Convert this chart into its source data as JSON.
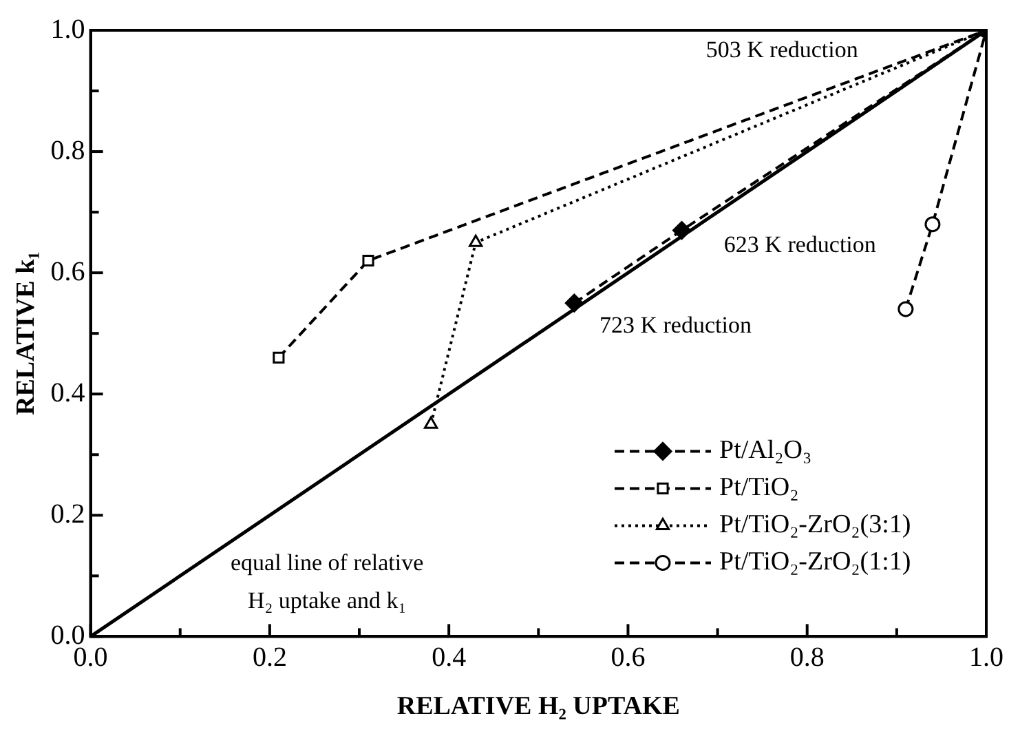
{
  "chart_data": {
    "type": "line",
    "xlabel": "RELATIVE H₂ UPTAKE",
    "ylabel": "RELATIVE k₁",
    "xlim": [
      0,
      1
    ],
    "ylim": [
      0,
      1
    ],
    "xticks": [
      {
        "value": 0,
        "label": "0.0"
      },
      {
        "value": 0.1,
        "label": null
      },
      {
        "value": 0.2,
        "label": "0.2"
      },
      {
        "value": 0.3,
        "label": null
      },
      {
        "value": 0.4,
        "label": "0.4"
      },
      {
        "value": 0.5,
        "label": null
      },
      {
        "value": 0.6,
        "label": "0.6"
      },
      {
        "value": 0.7,
        "label": null
      },
      {
        "value": 0.8,
        "label": "0.8"
      },
      {
        "value": 0.9,
        "label": null
      },
      {
        "value": 1,
        "label": "1.0"
      }
    ],
    "yticks": [
      {
        "value": 0,
        "label": "0.0"
      },
      {
        "value": 0.1,
        "label": null
      },
      {
        "value": 0.2,
        "label": "0.2"
      },
      {
        "value": 0.3,
        "label": null
      },
      {
        "value": 0.4,
        "label": "0.4"
      },
      {
        "value": 0.5,
        "label": null
      },
      {
        "value": 0.6,
        "label": "0.6"
      },
      {
        "value": 0.7,
        "label": null
      },
      {
        "value": 0.8,
        "label": "0.8"
      },
      {
        "value": 0.9,
        "label": null
      },
      {
        "value": 1,
        "label": "1.0"
      }
    ],
    "legend": "bottom right",
    "grid": false,
    "series": [
      {
        "name": "Pt/Al₂O₃",
        "color": "#000000",
        "x": [
          0.54,
          0.66,
          1
        ],
        "values": [
          0.55,
          0.67,
          1
        ],
        "marker": "diamond",
        "line_style": "dashed"
      },
      {
        "name": "Pt/TiO₂",
        "color": "#000000",
        "x": [
          0.21,
          0.31,
          1
        ],
        "values": [
          0.46,
          0.62,
          1
        ],
        "marker": "square",
        "line_style": "dashed"
      },
      {
        "name": "Pt/TiO₂-ZrO₂(3:1)",
        "color": "#000000",
        "x": [
          0.38,
          0.43,
          1
        ],
        "values": [
          0.35,
          0.65,
          1
        ],
        "marker": "triangle",
        "line_style": "dotted"
      },
      {
        "name": "Pt/TiO₂-ZrO₂(1:1)",
        "color": "#000000",
        "x": [
          0.91,
          0.94,
          1
        ],
        "values": [
          0.54,
          0.68,
          1
        ],
        "marker": "circle",
        "line_style": "dashed"
      },
      {
        "color": "#000000",
        "x": [
          0,
          1
        ],
        "values": [
          0,
          1
        ],
        "marker": "none",
        "line_style": "solid"
      }
    ],
    "annotations": [
      "503 K reduction",
      "623 K reduction",
      "723 K reduction",
      "equal line of relative",
      "H₂ uptake and k₁"
    ]
  }
}
